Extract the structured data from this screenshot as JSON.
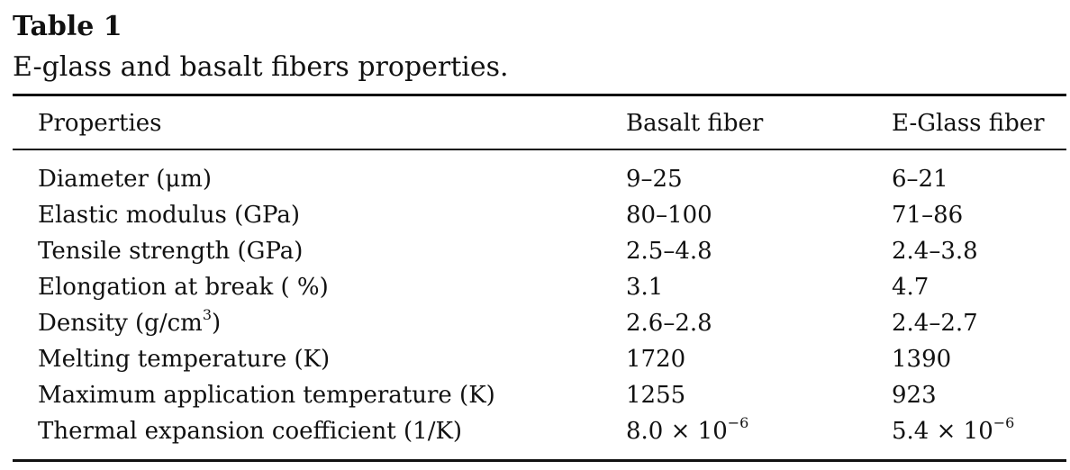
{
  "table": {
    "label": "Table 1",
    "caption": "E-glass and basalt fibers properties.",
    "headers": [
      "Properties",
      "Basalt fiber",
      "E-Glass fiber"
    ],
    "rows": [
      {
        "property": "Diameter (μm)",
        "basalt": "9–25",
        "eglass": "6–21"
      },
      {
        "property": "Elastic modulus (GPa)",
        "basalt": "80–100",
        "eglass": "71–86"
      },
      {
        "property": "Tensile strength (GPa)",
        "basalt": "2.5–4.8",
        "eglass": "2.4–3.8"
      },
      {
        "property": "Elongation at break ( %)",
        "basalt": "3.1",
        "eglass": "4.7"
      },
      {
        "property": "Density (g/cm",
        "property_sup": "3",
        "property_after": ")",
        "basalt": "2.6–2.8",
        "eglass": "2.4–2.7"
      },
      {
        "property": "Melting temperature (K)",
        "basalt": "1720",
        "eglass": "1390"
      },
      {
        "property": "Maximum application temperature (K)",
        "basalt": "1255",
        "eglass": "923"
      },
      {
        "property": "Thermal expansion coefficient (1/K)",
        "basalt": "8.0 × 10",
        "basalt_sup": "−6",
        "eglass": "5.4 × 10",
        "eglass_sup": "−6"
      }
    ]
  }
}
